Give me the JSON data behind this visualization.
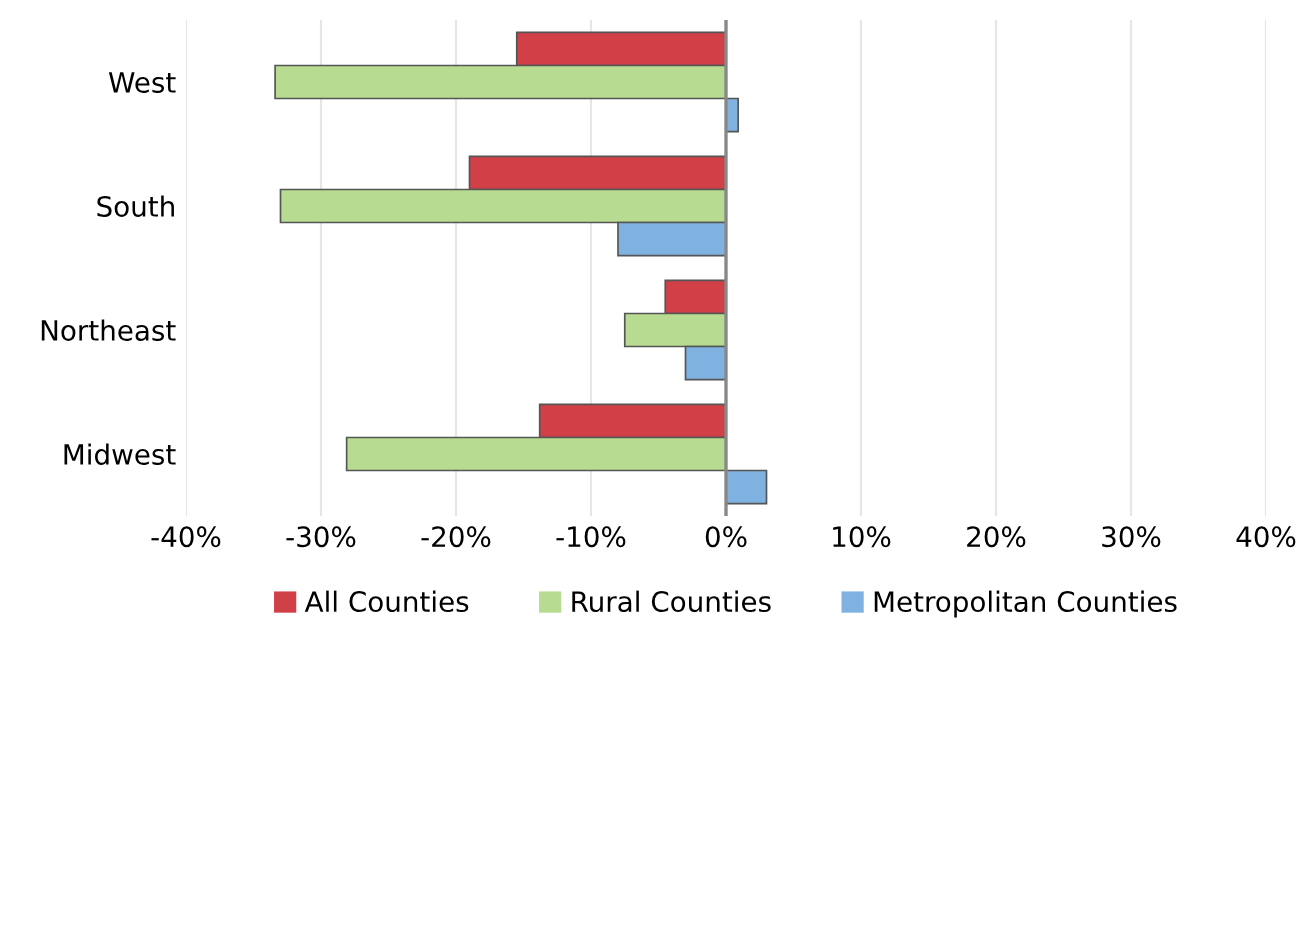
{
  "chart_data": {
    "type": "bar",
    "orientation": "horizontal",
    "categories": [
      "West",
      "South",
      "Northeast",
      "Midwest"
    ],
    "series": [
      {
        "name": "All Counties",
        "color": "#d13f47",
        "values": [
          -15.5,
          -19.0,
          -4.5,
          -13.8
        ]
      },
      {
        "name": "Rural Counties",
        "color": "#b7dc91",
        "values": [
          -33.4,
          -33.0,
          -7.5,
          -28.1
        ]
      },
      {
        "name": "Metropolitan Counties",
        "color": "#7fb2e0",
        "values": [
          0.9,
          -8.0,
          -3.0,
          3.0
        ]
      }
    ],
    "xlim": [
      -40,
      40
    ],
    "xticks": [
      {
        "value": -40,
        "label": "-40%"
      },
      {
        "value": -30,
        "label": "-30%"
      },
      {
        "value": -20,
        "label": "-20%"
      },
      {
        "value": -10,
        "label": "-10%"
      },
      {
        "value": 0,
        "label": "0%"
      },
      {
        "value": 10,
        "label": "10%"
      },
      {
        "value": 20,
        "label": "20%"
      },
      {
        "value": 30,
        "label": "30%"
      },
      {
        "value": 40,
        "label": "40%"
      }
    ],
    "grid": "x",
    "legend": "bottom"
  }
}
